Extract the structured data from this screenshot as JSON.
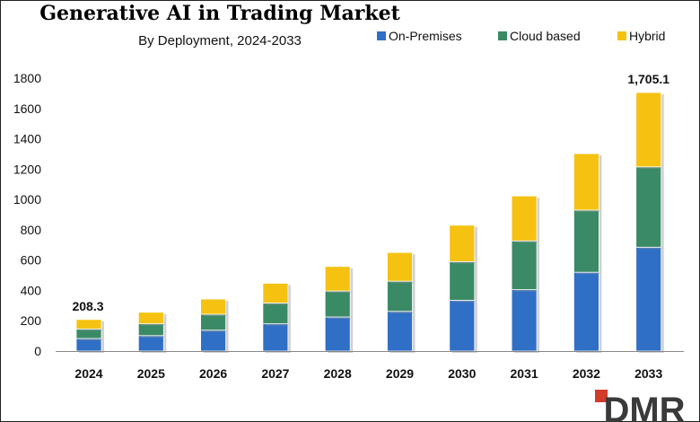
{
  "chart_data": {
    "type": "bar",
    "stacked": true,
    "title": "Generative AI in Trading Market",
    "subtitle": "By Deployment, 2024-2033",
    "xlabel": "",
    "ylabel": "",
    "ylim": [
      0,
      1800
    ],
    "yticks": [
      "0",
      "200",
      "400",
      "600",
      "800",
      "1000",
      "1200",
      "1400",
      "1600",
      "1800"
    ],
    "categories": [
      "2024",
      "2025",
      "2026",
      "2027",
      "2028",
      "2029",
      "2030",
      "2031",
      "2032",
      "2033"
    ],
    "series": [
      {
        "name": "On-Premises",
        "color": "#2f6fc6",
        "values": [
          83,
          102,
          138,
          180,
          225,
          262,
          335,
          405,
          520,
          685
        ]
      },
      {
        "name": "Cloud based",
        "color": "#3a8a66",
        "values": [
          63,
          78,
          105,
          137,
          171,
          199,
          255,
          322,
          410,
          530
        ]
      },
      {
        "name": "Hybrid",
        "color": "#f5c211",
        "values": [
          62.3,
          76,
          100,
          130,
          162,
          189,
          240,
          296,
          372,
          490.1
        ]
      }
    ],
    "annotations": [
      {
        "category": "2024",
        "text": "208.3"
      },
      {
        "category": "2033",
        "text": "1,705.1"
      }
    ],
    "legend_position": "top-right"
  },
  "logo": {
    "text": "DMR"
  }
}
